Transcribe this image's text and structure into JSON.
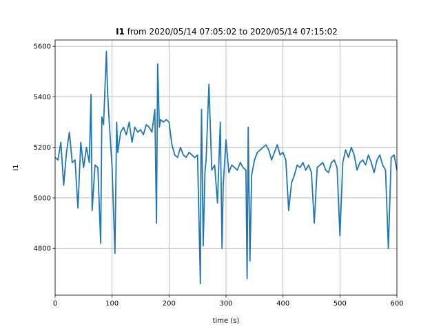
{
  "chart_data": {
    "type": "line",
    "title_bold": "I1",
    "title_rest": " from 2020/05/14 07:05:02 to 2020/05/14 07:15:02",
    "xlabel": "time (s)",
    "ylabel": "I1",
    "xlim": [
      0,
      600
    ],
    "ylim": [
      4615,
      5625
    ],
    "xticks": [
      0,
      100,
      200,
      300,
      400,
      500,
      600
    ],
    "yticks": [
      4800,
      5000,
      5200,
      5400,
      5600
    ],
    "grid": true,
    "series": [
      {
        "color": "#1f77b4",
        "x": [
          0,
          5,
          10,
          15,
          20,
          25,
          30,
          35,
          40,
          45,
          50,
          55,
          60,
          63,
          65,
          70,
          75,
          80,
          82,
          85,
          90,
          92,
          95,
          100,
          105,
          108,
          110,
          115,
          120,
          125,
          130,
          135,
          140,
          145,
          150,
          155,
          160,
          165,
          170,
          175,
          178,
          180,
          183,
          185,
          190,
          195,
          200,
          205,
          210,
          215,
          220,
          225,
          230,
          235,
          240,
          245,
          250,
          255,
          256,
          257,
          260,
          263,
          265,
          270,
          275,
          280,
          285,
          290,
          293,
          295,
          300,
          305,
          310,
          315,
          320,
          325,
          330,
          335,
          337,
          339,
          342,
          345,
          350,
          355,
          360,
          365,
          370,
          375,
          380,
          385,
          390,
          395,
          400,
          405,
          410,
          415,
          420,
          425,
          430,
          435,
          440,
          445,
          450,
          455,
          460,
          465,
          470,
          475,
          480,
          485,
          490,
          495,
          500,
          505,
          510,
          515,
          520,
          525,
          530,
          535,
          540,
          545,
          550,
          555,
          560,
          565,
          570,
          575,
          580,
          585,
          590,
          595,
          600
        ],
        "values": [
          5160,
          5150,
          5220,
          5050,
          5180,
          5260,
          5140,
          5150,
          4960,
          5220,
          5120,
          5200,
          5140,
          5410,
          4950,
          5130,
          5120,
          4820,
          5320,
          5290,
          5580,
          5420,
          5300,
          5120,
          4780,
          5300,
          5180,
          5260,
          5280,
          5250,
          5300,
          5220,
          5280,
          5260,
          5270,
          5250,
          5290,
          5280,
          5260,
          5350,
          4900,
          5530,
          5280,
          5310,
          5300,
          5310,
          5300,
          5210,
          5170,
          5160,
          5200,
          5170,
          5160,
          5180,
          5170,
          5160,
          5170,
          4660,
          5160,
          5350,
          4810,
          5100,
          5150,
          5450,
          5110,
          5130,
          4980,
          5300,
          4800,
          5050,
          5230,
          5100,
          5130,
          5120,
          5110,
          5140,
          5120,
          5110,
          4680,
          5280,
          4750,
          5090,
          5150,
          5180,
          5190,
          5200,
          5210,
          5190,
          5150,
          5180,
          5210,
          5170,
          5180,
          5150,
          4950,
          5060,
          5090,
          5130,
          5120,
          5140,
          5110,
          5130,
          5100,
          4900,
          5120,
          5130,
          5140,
          5110,
          5100,
          5140,
          5150,
          5120,
          4850,
          5140,
          5190,
          5160,
          5200,
          5170,
          5110,
          5140,
          5150,
          5130,
          5170,
          5140,
          5100,
          5150,
          5170,
          5130,
          5110,
          4800,
          5160,
          5170,
          5110
        ]
      }
    ]
  }
}
